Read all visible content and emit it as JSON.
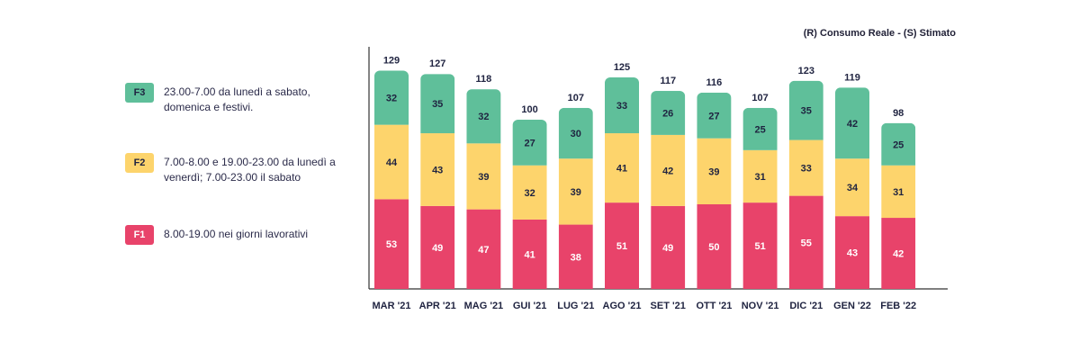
{
  "note": "(R) Consumo Reale - (S) Stimato",
  "legend": [
    {
      "code": "F3",
      "text": "23.00-7.00 da lunedì a sabato, domenica e festivi.",
      "color": "#5fbf9a"
    },
    {
      "code": "F2",
      "text": "7.00-8.00 e 19.00-23.00 da lunedì a venerdì; 7.00-23.00 il sabato",
      "color": "#fdd46c"
    },
    {
      "code": "F1",
      "text": "8.00-19.00 nei giorni lavorativi",
      "color": "#e8436a"
    }
  ],
  "chart_data": {
    "type": "bar",
    "stacked": true,
    "categories": [
      "MAR '21",
      "APR '21",
      "MAG '21",
      "GUI '21",
      "LUG '21",
      "AGO '21",
      "SET '21",
      "OTT '21",
      "NOV '21",
      "DIC '21",
      "GEN '22",
      "FEB '22"
    ],
    "series": [
      {
        "name": "F1",
        "color": "#e8436a",
        "values": [
          53,
          49,
          47,
          41,
          38,
          51,
          49,
          50,
          51,
          55,
          43,
          42
        ]
      },
      {
        "name": "F2",
        "color": "#fdd46c",
        "values": [
          44,
          43,
          39,
          32,
          39,
          41,
          42,
          39,
          31,
          33,
          34,
          31
        ]
      },
      {
        "name": "F3",
        "color": "#5fbf9a",
        "values": [
          32,
          35,
          32,
          27,
          30,
          33,
          26,
          27,
          25,
          35,
          42,
          25
        ]
      }
    ],
    "totals": [
      129,
      127,
      118,
      100,
      107,
      125,
      117,
      116,
      107,
      123,
      119,
      98
    ],
    "ylim": [
      0,
      145
    ],
    "grid": false,
    "legend_position": "left"
  }
}
